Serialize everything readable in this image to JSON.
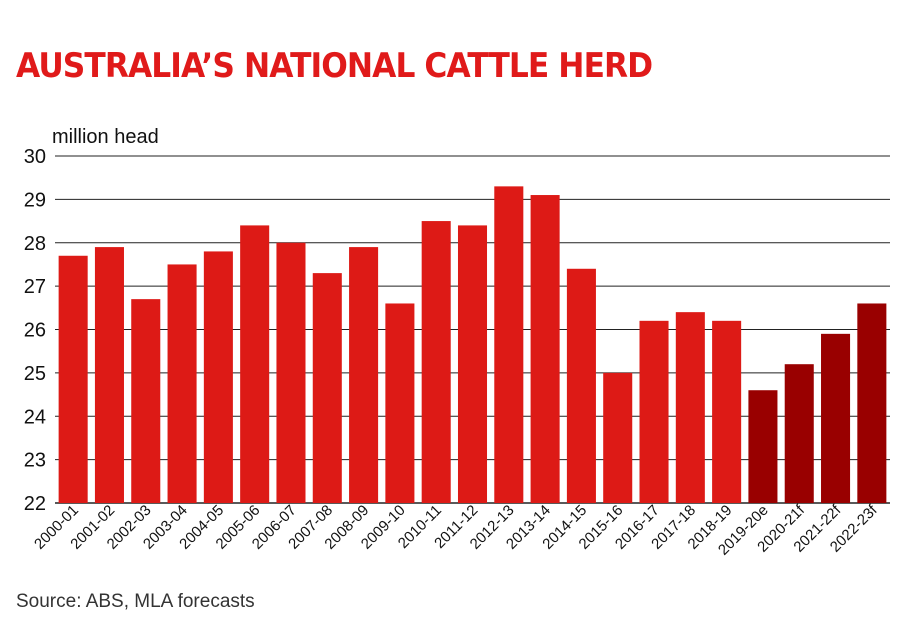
{
  "chart_data": {
    "type": "bar",
    "title": "AUSTRALIA’S NATIONAL CATTLE HERD",
    "ylabel": "million head",
    "xlabel": "",
    "ylim": [
      22,
      30
    ],
    "yticks": [
      22,
      23,
      24,
      25,
      26,
      27,
      28,
      29,
      30
    ],
    "grid": true,
    "categories": [
      "2000-01",
      "2001-02",
      "2002-03",
      "2003-04",
      "2004-05",
      "2005-06",
      "2006-07",
      "2007-08",
      "2008-09",
      "2009-10",
      "2010-11",
      "2011-12",
      "2012-13",
      "2013-14",
      "2014-15",
      "2015-16",
      "2016-17",
      "2017-18",
      "2018-19",
      "2019-20e",
      "2020-21f",
      "2021-22f",
      "2022-23f"
    ],
    "values": [
      27.7,
      27.9,
      26.7,
      27.5,
      27.8,
      28.4,
      28.0,
      27.3,
      27.9,
      26.6,
      28.5,
      28.4,
      29.3,
      29.1,
      27.4,
      25.0,
      26.2,
      26.4,
      26.2,
      24.6,
      25.2,
      25.9,
      26.6
    ],
    "colors": {
      "actual": "#dd1a16",
      "forecast": "#990000"
    },
    "forecast_from_index": 19,
    "source": "Source: ABS, MLA forecasts"
  }
}
